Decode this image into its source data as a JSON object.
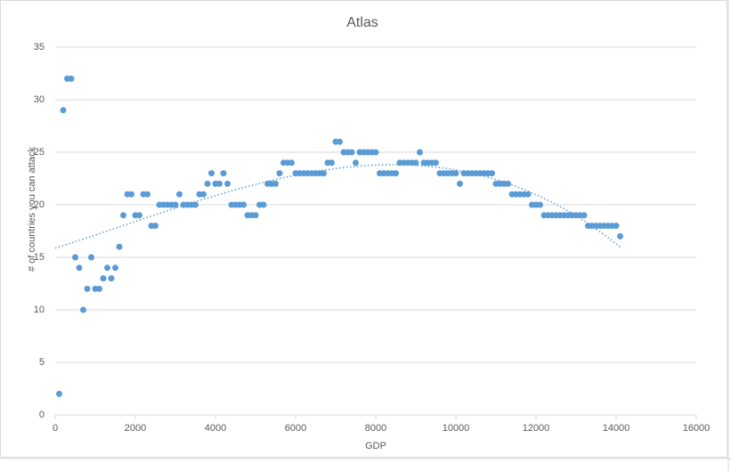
{
  "chart_data": {
    "type": "scatter",
    "title": "Atlas",
    "x_label": "GDP",
    "y_label": "# of countries you can attack",
    "x": [
      100,
      200,
      300,
      400,
      500,
      600,
      700,
      800,
      900,
      1000,
      1100,
      1200,
      1300,
      1400,
      1500,
      1600,
      1700,
      1800,
      1900,
      2000,
      2100,
      2200,
      2300,
      2400,
      2500,
      2600,
      2700,
      2800,
      2900,
      3000,
      3100,
      3200,
      3300,
      3400,
      3500,
      3600,
      3700,
      3800,
      3900,
      4000,
      4100,
      4200,
      4300,
      4400,
      4500,
      4600,
      4700,
      4800,
      4900,
      5000,
      5100,
      5200,
      5300,
      5400,
      5500,
      5600,
      5700,
      5800,
      5900,
      6000,
      6100,
      6200,
      6300,
      6400,
      6500,
      6600,
      6700,
      6800,
      6900,
      7000,
      7100,
      7200,
      7300,
      7400,
      7500,
      7600,
      7700,
      7800,
      7900,
      8000,
      8100,
      8200,
      8300,
      8400,
      8500,
      8600,
      8700,
      8800,
      8900,
      9000,
      9100,
      9200,
      9300,
      9400,
      9500,
      9600,
      9700,
      9800,
      9900,
      10000,
      10100,
      10200,
      10300,
      10400,
      10500,
      10600,
      10700,
      10800,
      10900,
      11000,
      11100,
      11200,
      11300,
      11400,
      11500,
      11600,
      11700,
      11800,
      11900,
      12000,
      12100,
      12200,
      12300,
      12400,
      12500,
      12600,
      12700,
      12800,
      12900,
      13000,
      13100,
      13200,
      13300,
      13400,
      13500,
      13600,
      13700,
      13800,
      13900,
      14000,
      14100
    ],
    "values": [
      2,
      29,
      32,
      32,
      15,
      14,
      10,
      12,
      15,
      12,
      12,
      13,
      14,
      13,
      14,
      16,
      19,
      21,
      21,
      19,
      19,
      21,
      21,
      18,
      18,
      20,
      20,
      20,
      20,
      20,
      21,
      20,
      20,
      20,
      20,
      21,
      21,
      22,
      23,
      22,
      22,
      23,
      22,
      20,
      20,
      20,
      20,
      19,
      19,
      19,
      20,
      20,
      22,
      22,
      22,
      23,
      24,
      24,
      24,
      23,
      23,
      23,
      23,
      23,
      23,
      23,
      23,
      24,
      24,
      26,
      26,
      25,
      25,
      25,
      24,
      25,
      25,
      25,
      25,
      25,
      23,
      23,
      23,
      23,
      23,
      24,
      24,
      24,
      24,
      24,
      25,
      24,
      24,
      24,
      24,
      23,
      23,
      23,
      23,
      23,
      22,
      23,
      23,
      23,
      23,
      23,
      23,
      23,
      23,
      22,
      22,
      22,
      22,
      21,
      21,
      21,
      21,
      21,
      20,
      20,
      20,
      19,
      19,
      19,
      19,
      19,
      19,
      19,
      19,
      19,
      19,
      19,
      18,
      18,
      18,
      18,
      18,
      18,
      18,
      18,
      17
    ],
    "color": "#5b9bd5",
    "trendline": "polynomial",
    "xlim": [
      0,
      16000
    ],
    "xticks": [
      0,
      2000,
      4000,
      6000,
      8000,
      10000,
      12000,
      14000,
      16000
    ],
    "ylim": [
      0,
      35
    ],
    "yticks": [
      0,
      5,
      10,
      15,
      20,
      25,
      30,
      35
    ],
    "grid": true
  }
}
